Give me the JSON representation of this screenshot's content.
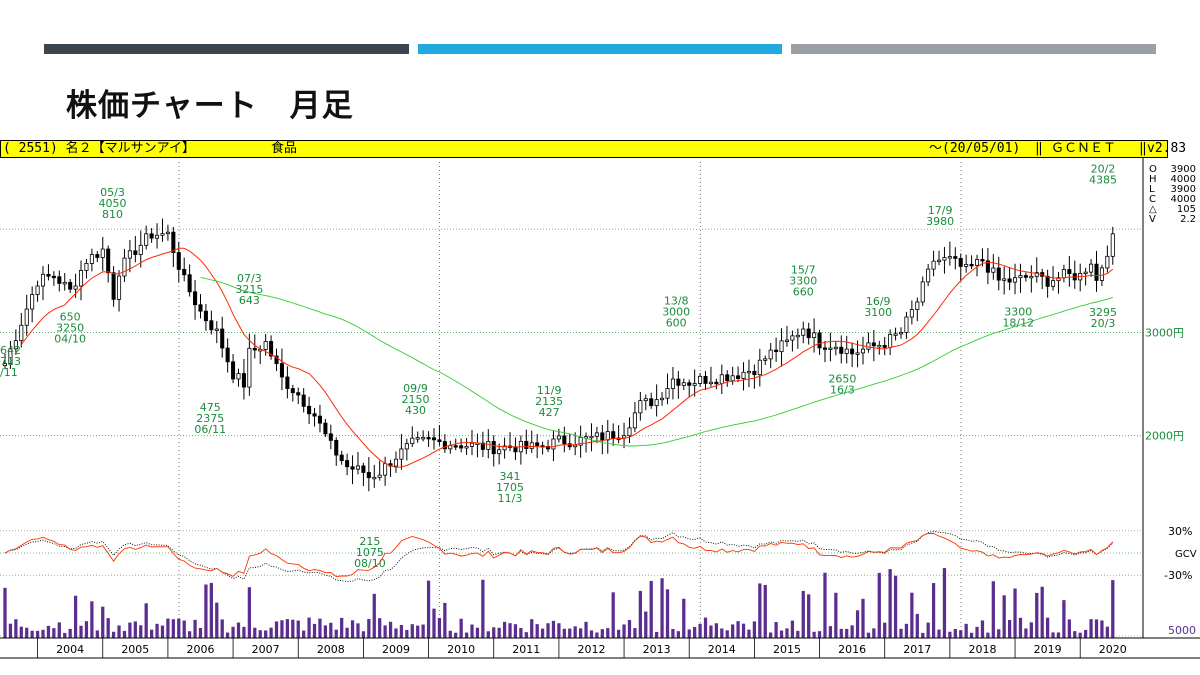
{
  "slide": {
    "title": "株価チャート　月足",
    "bar_colors": [
      "#3c4650",
      "#22a9e0",
      "#9aa0a6"
    ]
  },
  "header": {
    "code": "( 2551) 名２【マルサンアイ】",
    "sector": "食品",
    "date": "～(20/05/01)",
    "sep": "‖",
    "source": "ＧＣＮＥＴ",
    "version": "v2.83"
  },
  "chart_data": {
    "type": "candlestick",
    "price_ylim": [
      1300,
      4650
    ],
    "price_ticks": [
      {
        "value": 3000,
        "label": "3000円"
      },
      {
        "value": 2000,
        "label": "2000円"
      }
    ],
    "ohlcv_panel": {
      "labels": [
        "O",
        "H",
        "L",
        "C",
        "△",
        "V"
      ],
      "values": [
        "3900",
        "4000",
        "3900",
        "4000",
        "105",
        "2.2"
      ]
    },
    "years": [
      "2004",
      "2005",
      "2006",
      "2007",
      "2008",
      "2009",
      "2010",
      "2011",
      "2012",
      "2013",
      "2014",
      "2015",
      "2016",
      "2017",
      "2018",
      "2019",
      "2020"
    ],
    "x_start_year": 2003.25,
    "x_end_year": 2020.33,
    "price_anchors": [
      [
        2003.25,
        2700
      ],
      [
        2003.5,
        3100
      ],
      [
        2003.75,
        3500
      ],
      [
        2004.0,
        3550
      ],
      [
        2004.25,
        3400
      ],
      [
        2004.5,
        3700
      ],
      [
        2004.75,
        3800
      ],
      [
        2004.92,
        3350
      ],
      [
        2005.0,
        3600
      ],
      [
        2005.25,
        3800
      ],
      [
        2005.5,
        3950
      ],
      [
        2005.75,
        3950
      ],
      [
        2006.0,
        3500
      ],
      [
        2006.25,
        3200
      ],
      [
        2006.5,
        3000
      ],
      [
        2006.75,
        2600
      ],
      [
        2006.92,
        2500
      ],
      [
        2007.0,
        2800
      ],
      [
        2007.25,
        2900
      ],
      [
        2007.5,
        2550
      ],
      [
        2007.75,
        2400
      ],
      [
        2008.0,
        2200
      ],
      [
        2008.25,
        1900
      ],
      [
        2008.5,
        1700
      ],
      [
        2008.75,
        1650
      ],
      [
        2008.83,
        1600
      ],
      [
        2009.0,
        1650
      ],
      [
        2009.25,
        1800
      ],
      [
        2009.5,
        1920
      ],
      [
        2009.75,
        1950
      ],
      [
        2010.0,
        1930
      ],
      [
        2010.5,
        1900
      ],
      [
        2010.83,
        1880
      ],
      [
        2011.0,
        1900
      ],
      [
        2011.25,
        1880
      ],
      [
        2011.5,
        1900
      ],
      [
        2011.75,
        1950
      ],
      [
        2012.0,
        1950
      ],
      [
        2012.5,
        2000
      ],
      [
        2012.75,
        2050
      ],
      [
        2013.0,
        2300
      ],
      [
        2013.25,
        2350
      ],
      [
        2013.5,
        2550
      ],
      [
        2013.75,
        2520
      ],
      [
        2014.0,
        2550
      ],
      [
        2014.5,
        2600
      ],
      [
        2014.75,
        2650
      ],
      [
        2015.0,
        2800
      ],
      [
        2015.25,
        2900
      ],
      [
        2015.5,
        3050
      ],
      [
        2015.75,
        2900
      ],
      [
        2016.0,
        2880
      ],
      [
        2016.25,
        2800
      ],
      [
        2016.5,
        2850
      ],
      [
        2016.75,
        2900
      ],
      [
        2017.0,
        3000
      ],
      [
        2017.25,
        3300
      ],
      [
        2017.5,
        3700
      ],
      [
        2017.75,
        3700
      ],
      [
        2018.0,
        3600
      ],
      [
        2018.25,
        3700
      ],
      [
        2018.5,
        3500
      ],
      [
        2018.75,
        3500
      ],
      [
        2019.0,
        3550
      ],
      [
        2019.25,
        3500
      ],
      [
        2019.5,
        3550
      ],
      [
        2019.75,
        3550
      ],
      [
        2019.92,
        3700
      ],
      [
        2020.0,
        3500
      ],
      [
        2020.17,
        3800
      ],
      [
        2020.33,
        4000
      ]
    ],
    "annotations": [
      {
        "date": "05/3",
        "price": 4050,
        "volume": 810,
        "type": "high",
        "x": 2004.9
      },
      {
        "date": "04/10",
        "price": 3250,
        "volume": 650,
        "type": "low",
        "x": 2004.25
      },
      {
        "date": "07/3",
        "price": 3215,
        "volume": 643,
        "type": "high",
        "x": 2007.0
      },
      {
        "date": "06/11",
        "price": 2375,
        "volume": 475,
        "type": "low",
        "x": 2006.4
      },
      {
        "date": "08/10",
        "price": 1075,
        "volume": 215,
        "type": "low",
        "x": 2008.85
      },
      {
        "date": "09/9",
        "price": 2150,
        "volume": 430,
        "type": "high",
        "x": 2009.55
      },
      {
        "date": "11/3",
        "price": 1705,
        "volume": 341,
        "type": "low",
        "x": 2011.0
      },
      {
        "date": "11/9",
        "price": 2135,
        "volume": 427,
        "type": "high",
        "x": 2011.6
      },
      {
        "date": "13/8",
        "price": 3000,
        "volume": 600,
        "type": "high",
        "x": 2013.55
      },
      {
        "date": "15/7",
        "price": 3300,
        "volume": 660,
        "type": "high",
        "x": 2015.5
      },
      {
        "date": "16/3",
        "price": 2650,
        "volume": null,
        "type": "low",
        "x": 2016.1
      },
      {
        "date": "16/9",
        "price": 3100,
        "volume": null,
        "type": "high",
        "x": 2016.65
      },
      {
        "date": "17/9",
        "price": 3980,
        "volume": null,
        "type": "high",
        "x": 2017.6
      },
      {
        "date": "18/12",
        "price": 3300,
        "volume": null,
        "type": "low",
        "x": 2018.8
      },
      {
        "date": "20/2",
        "price": 4385,
        "volume": null,
        "type": "high",
        "x": 2020.1
      },
      {
        "date": "20/3",
        "price": 3295,
        "volume": null,
        "type": "low",
        "x": 2020.1
      }
    ],
    "partial_left_labels": [
      "642",
      "713",
      "/11"
    ],
    "oscillator": {
      "labels": [
        "30%",
        "GCV",
        "-30%"
      ],
      "ylim": [
        -50,
        50
      ]
    },
    "volume": {
      "label": "5000",
      "bar_color": "#5b2d90"
    },
    "colors": {
      "candle": "#000000",
      "ma_short": "#ff2a00",
      "ma_long": "#33cc33",
      "annotation": "#1a8c3c",
      "grid": "#33aa55",
      "osc_fast": "#ff3300",
      "osc_slow": "#000000"
    }
  }
}
